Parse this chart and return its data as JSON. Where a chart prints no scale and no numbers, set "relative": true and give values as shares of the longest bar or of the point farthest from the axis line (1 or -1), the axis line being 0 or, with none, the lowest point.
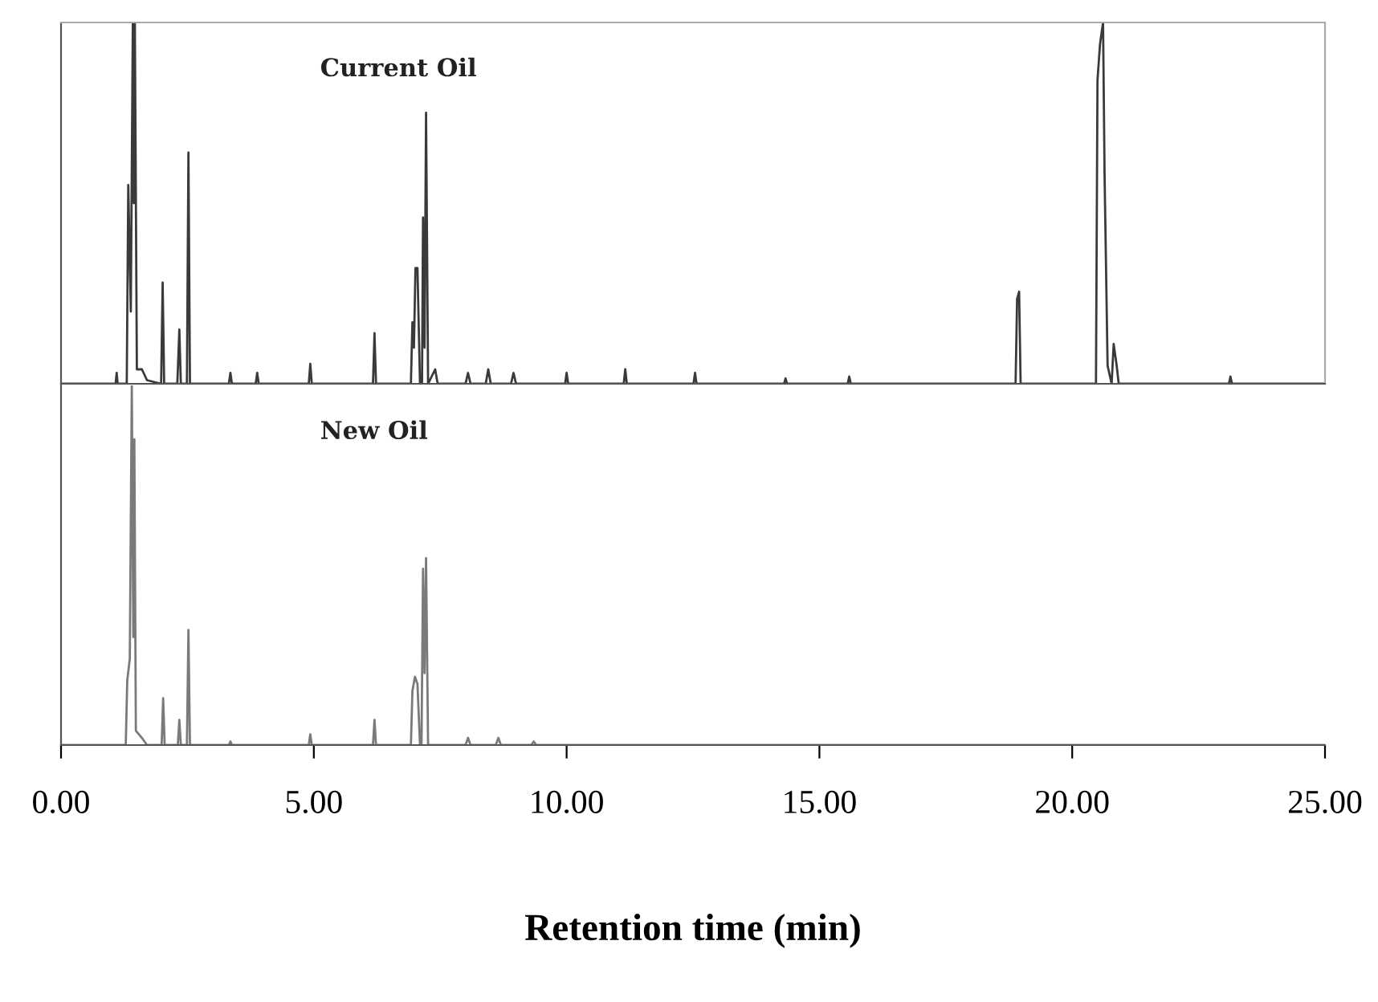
{
  "chart_data": [
    {
      "type": "line",
      "relative": true,
      "xlim": [
        0,
        25
      ],
      "tick_labels": false,
      "series": [
        {
          "name": "Current Oil",
          "color": "#3a3a3a",
          "x": [
            0,
            1.08,
            1.1,
            1.12,
            1.3,
            1.33,
            1.38,
            1.42,
            1.44,
            1.46,
            1.5,
            1.6,
            1.7,
            1.98,
            2.01,
            2.04,
            2.3,
            2.34,
            2.37,
            2.49,
            2.52,
            2.55,
            3.32,
            3.35,
            3.38,
            3.85,
            3.88,
            3.91,
            4.9,
            4.93,
            4.96,
            6.17,
            6.2,
            6.23,
            6.92,
            6.95,
            6.98,
            7.01,
            7.05,
            7.1,
            7.14,
            7.16,
            7.19,
            7.22,
            7.26,
            7.4,
            7.45,
            8.0,
            8.05,
            8.1,
            8.4,
            8.45,
            8.5,
            8.9,
            8.95,
            9.0,
            9.97,
            10.0,
            10.03,
            11.13,
            11.16,
            11.19,
            12.51,
            12.54,
            12.57,
            14.3,
            14.33,
            14.36,
            15.56,
            15.59,
            15.62,
            18.88,
            18.91,
            18.95,
            18.98,
            20.47,
            20.5,
            20.55,
            20.61,
            20.64,
            20.7,
            20.78,
            20.82,
            20.88,
            20.92,
            23.1,
            23.13,
            23.16,
            25
          ],
          "values": [
            0,
            0,
            0.03,
            0,
            0,
            0.55,
            0.2,
            1.0,
            0.5,
            1.0,
            0.04,
            0.04,
            0.01,
            0,
            0.28,
            0,
            0,
            0.15,
            0,
            0,
            0.64,
            0,
            0,
            0.03,
            0,
            0,
            0.03,
            0,
            0,
            0.055,
            0,
            0,
            0.14,
            0,
            0,
            0.17,
            0.1,
            0.32,
            0.32,
            0,
            0,
            0.46,
            0.1,
            0.75,
            0,
            0.04,
            0,
            0,
            0.03,
            0,
            0,
            0.04,
            0,
            0,
            0.03,
            0,
            0,
            0.03,
            0,
            0,
            0.04,
            0,
            0,
            0.03,
            0,
            0,
            0.015,
            0,
            0,
            0.02,
            0,
            0,
            0.235,
            0.255,
            0,
            0,
            0.84,
            0.94,
            1.0,
            0.58,
            0.05,
            0,
            0.11,
            0.05,
            0,
            0,
            0.02,
            0,
            0
          ]
        }
      ]
    },
    {
      "type": "line",
      "relative": true,
      "xlim": [
        0,
        25
      ],
      "tick_labels": "x",
      "xlabel": "Retention time (min)",
      "xticks": [
        {
          "value": 0,
          "label": "0.00"
        },
        {
          "value": 5,
          "label": "5.00"
        },
        {
          "value": 10,
          "label": "10.00"
        },
        {
          "value": 15,
          "label": "15.00"
        },
        {
          "value": 20,
          "label": "20.00"
        },
        {
          "value": 25,
          "label": "25.00"
        }
      ],
      "series": [
        {
          "name": "New Oil",
          "color": "#7a7a7a",
          "x": [
            0,
            1.28,
            1.31,
            1.36,
            1.4,
            1.43,
            1.45,
            1.48,
            1.6,
            1.7,
            1.99,
            2.02,
            2.05,
            2.31,
            2.34,
            2.37,
            2.49,
            2.52,
            2.55,
            3.32,
            3.35,
            3.38,
            4.9,
            4.93,
            4.96,
            6.17,
            6.2,
            6.23,
            6.92,
            6.95,
            7.0,
            7.05,
            7.1,
            7.13,
            7.16,
            7.19,
            7.22,
            7.26,
            8.0,
            8.05,
            8.1,
            8.6,
            8.65,
            8.7,
            9.3,
            9.35,
            9.4,
            10,
            25
          ],
          "values": [
            0,
            0,
            0.18,
            0.24,
            1.0,
            0.3,
            0.85,
            0.04,
            0.02,
            0,
            0,
            0.13,
            0,
            0,
            0.07,
            0,
            0,
            0.32,
            0,
            0,
            0.01,
            0,
            0,
            0.03,
            0,
            0,
            0.07,
            0,
            0,
            0.15,
            0.19,
            0.17,
            0,
            0,
            0.49,
            0.2,
            0.52,
            0,
            0,
            0.02,
            0,
            0,
            0.02,
            0,
            0,
            0.01,
            0,
            0,
            0
          ]
        }
      ]
    }
  ]
}
